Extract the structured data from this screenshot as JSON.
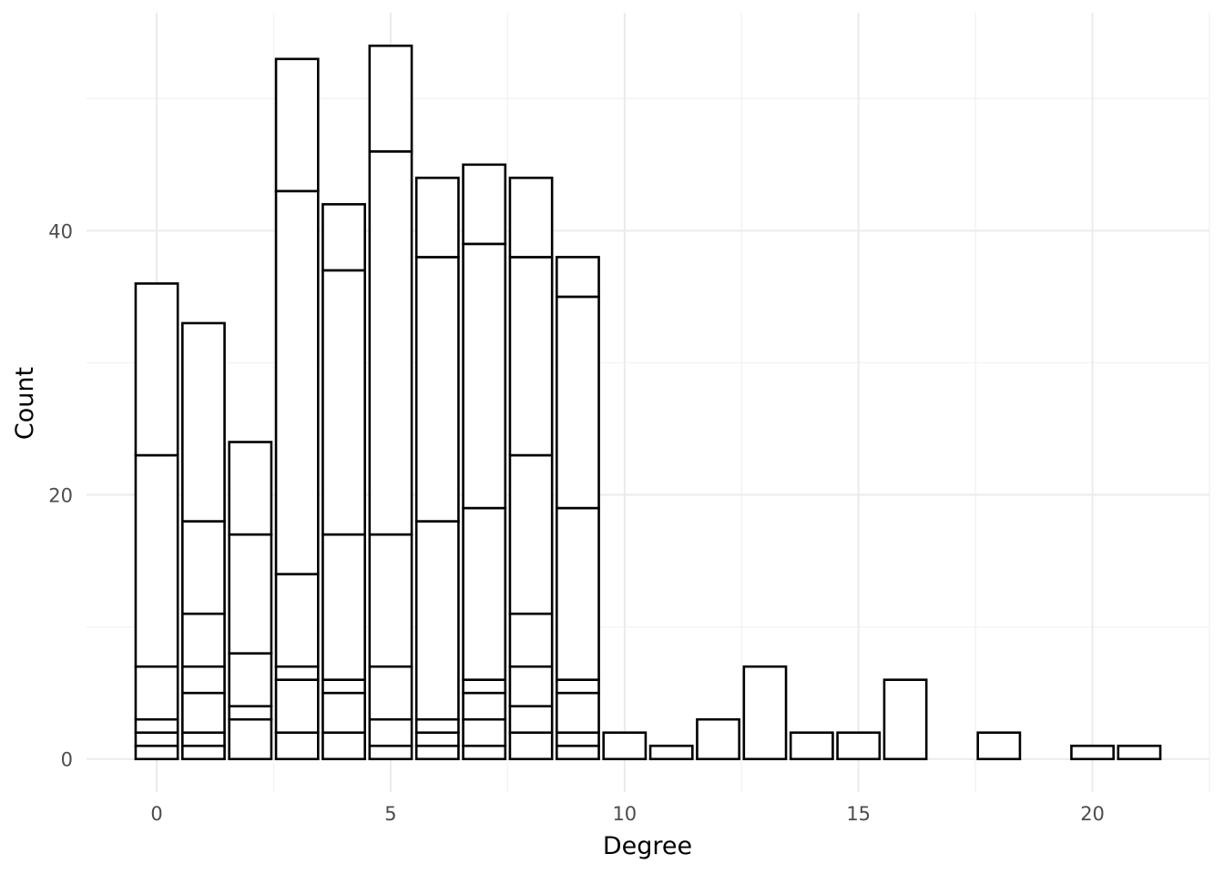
{
  "chart_data": {
    "type": "bar",
    "stacked": true,
    "xlabel": "Degree",
    "ylabel": "Count",
    "xlim": [
      -1.5,
      22.5
    ],
    "ylim": [
      -2.5,
      56.5
    ],
    "x_ticks": [
      0,
      5,
      10,
      15,
      20
    ],
    "y_ticks": [
      0,
      20,
      40
    ],
    "grid": true,
    "bar_fill": "#ffffff",
    "bar_stroke": "#000000",
    "grid_color": "#ebebeb",
    "bars": [
      {
        "x": 0,
        "stack_boundaries": [
          1,
          2,
          3,
          7,
          23,
          36
        ]
      },
      {
        "x": 1,
        "stack_boundaries": [
          1,
          2,
          5,
          7,
          11,
          18,
          33
        ]
      },
      {
        "x": 2,
        "stack_boundaries": [
          3,
          4,
          8,
          17,
          24
        ]
      },
      {
        "x": 3,
        "stack_boundaries": [
          2,
          6,
          7,
          14,
          43,
          53
        ]
      },
      {
        "x": 4,
        "stack_boundaries": [
          2,
          5,
          6,
          17,
          37,
          42
        ]
      },
      {
        "x": 5,
        "stack_boundaries": [
          1,
          3,
          7,
          17,
          46,
          54
        ]
      },
      {
        "x": 6,
        "stack_boundaries": [
          1,
          2,
          3,
          18,
          38,
          44
        ]
      },
      {
        "x": 7,
        "stack_boundaries": [
          1,
          3,
          5,
          6,
          19,
          39,
          45
        ]
      },
      {
        "x": 8,
        "stack_boundaries": [
          2,
          4,
          7,
          11,
          23,
          38,
          44
        ]
      },
      {
        "x": 9,
        "stack_boundaries": [
          1,
          2,
          5,
          6,
          19,
          35,
          38
        ]
      },
      {
        "x": 10,
        "stack_boundaries": [
          2
        ]
      },
      {
        "x": 11,
        "stack_boundaries": [
          1
        ]
      },
      {
        "x": 12,
        "stack_boundaries": [
          3
        ]
      },
      {
        "x": 13,
        "stack_boundaries": [
          7
        ]
      },
      {
        "x": 14,
        "stack_boundaries": [
          2
        ]
      },
      {
        "x": 15,
        "stack_boundaries": [
          2
        ]
      },
      {
        "x": 16,
        "stack_boundaries": [
          6
        ]
      },
      {
        "x": 18,
        "stack_boundaries": [
          2
        ]
      },
      {
        "x": 20,
        "stack_boundaries": [
          1
        ]
      },
      {
        "x": 21,
        "stack_boundaries": [
          1
        ]
      }
    ]
  }
}
